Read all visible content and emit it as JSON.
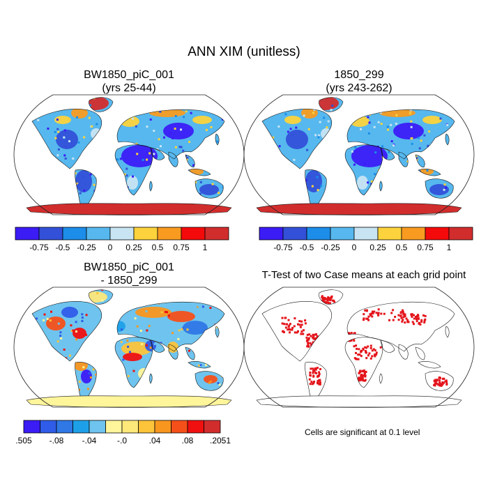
{
  "figure": {
    "title": "ANN XIM (unitless)"
  },
  "panels": [
    {
      "id": "case1",
      "title_line1": "BW1850_piC_001",
      "title_line2": "(yrs 25-44)"
    },
    {
      "id": "case2",
      "title_line1": "1850_299",
      "title_line2": "(yrs 243-262)"
    },
    {
      "id": "diff",
      "title_line1": "BW1850_piC_001",
      "title_line2": "- 1850_299"
    },
    {
      "id": "ttest",
      "title_line1": "T-Test of two Case means at each grid point",
      "title_line2": ""
    }
  ],
  "colorbar_abs": {
    "colors": [
      "#3b1cf5",
      "#3350d8",
      "#1c8de8",
      "#56b8ee",
      "#c8e4f2",
      "#fcd33c",
      "#f89b20",
      "#f40a0a",
      "#d22d2d"
    ],
    "labels": [
      "-0.75",
      "-0.5",
      "-0.25",
      "0",
      "0.25",
      "0.5",
      "0.75",
      "1"
    ]
  },
  "colorbar_diff": {
    "colors": [
      "#3b1cf5",
      "#2f5ce8",
      "#2f78e6",
      "#1ea0e8",
      "#6ec4ee",
      "#fff59a",
      "#fde87a",
      "#fcc43a",
      "#f8961e",
      "#f5501a",
      "#f01010",
      "#d22d2d"
    ],
    "labels": [
      ".505",
      "-.08",
      "-.04",
      "-.0",
      ".04",
      ".08",
      ".2051"
    ]
  },
  "ttest_note": "Cells are significant at 0.1 level",
  "legend_colors": {
    "significant": "#e4141b",
    "antarctica_abs": "#d22d2d",
    "antarctica_diff": "#fff59a"
  }
}
